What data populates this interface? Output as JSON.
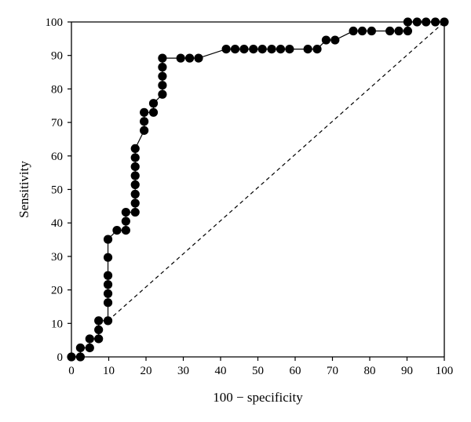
{
  "chart_data": {
    "type": "line",
    "title": "",
    "xlabel": "100 − specificity",
    "ylabel": "Sensitivity",
    "xlim": [
      0,
      100
    ],
    "ylim": [
      0,
      100
    ],
    "x_ticks": [
      "0",
      "10",
      "20",
      "30",
      "40",
      "50",
      "60",
      "70",
      "80",
      "90",
      "100"
    ],
    "y_ticks": [
      "0",
      "10",
      "20",
      "30",
      "40",
      "50",
      "60",
      "70",
      "80",
      "90",
      "100"
    ],
    "grid": false,
    "series": [
      {
        "line": "solid",
        "marker": "filled-circle",
        "points": [
          [
            0,
            0
          ],
          [
            2.4,
            0
          ],
          [
            2.4,
            2.7
          ],
          [
            4.9,
            2.7
          ],
          [
            4.9,
            5.4
          ],
          [
            7.3,
            5.4
          ],
          [
            7.3,
            8.1
          ],
          [
            7.3,
            10.8
          ],
          [
            9.8,
            10.8
          ],
          [
            9.8,
            16.2
          ],
          [
            9.8,
            18.9
          ],
          [
            9.8,
            21.6
          ],
          [
            9.8,
            24.3
          ],
          [
            9.8,
            29.7
          ],
          [
            9.8,
            35.1
          ],
          [
            12.2,
            37.8
          ],
          [
            14.6,
            37.8
          ],
          [
            14.6,
            40.5
          ],
          [
            14.6,
            43.2
          ],
          [
            17.1,
            43.2
          ],
          [
            17.1,
            45.9
          ],
          [
            17.1,
            48.6
          ],
          [
            17.1,
            51.4
          ],
          [
            17.1,
            54.1
          ],
          [
            17.1,
            56.8
          ],
          [
            17.1,
            59.5
          ],
          [
            17.1,
            62.2
          ],
          [
            19.5,
            67.6
          ],
          [
            19.5,
            70.3
          ],
          [
            19.5,
            73.0
          ],
          [
            22.0,
            73.0
          ],
          [
            22.0,
            75.7
          ],
          [
            24.4,
            78.4
          ],
          [
            24.4,
            81.1
          ],
          [
            24.4,
            83.8
          ],
          [
            24.4,
            86.5
          ],
          [
            24.4,
            89.2
          ],
          [
            29.3,
            89.2
          ],
          [
            31.7,
            89.2
          ],
          [
            34.1,
            89.2
          ],
          [
            41.5,
            91.9
          ],
          [
            43.9,
            91.9
          ],
          [
            46.3,
            91.9
          ],
          [
            48.8,
            91.9
          ],
          [
            51.2,
            91.9
          ],
          [
            53.7,
            91.9
          ],
          [
            56.1,
            91.9
          ],
          [
            58.5,
            91.9
          ],
          [
            63.4,
            91.9
          ],
          [
            65.9,
            91.9
          ],
          [
            68.3,
            94.6
          ],
          [
            70.7,
            94.6
          ],
          [
            75.6,
            97.3
          ],
          [
            78.0,
            97.3
          ],
          [
            80.5,
            97.3
          ],
          [
            85.4,
            97.3
          ],
          [
            87.8,
            97.3
          ],
          [
            90.2,
            97.3
          ],
          [
            90.2,
            100
          ],
          [
            92.7,
            100
          ],
          [
            95.1,
            100
          ],
          [
            97.6,
            100
          ],
          [
            100,
            100
          ]
        ]
      },
      {
        "line": "dashed",
        "marker": "none",
        "points": [
          [
            9.8,
            10.8
          ],
          [
            100,
            100
          ]
        ]
      }
    ]
  }
}
